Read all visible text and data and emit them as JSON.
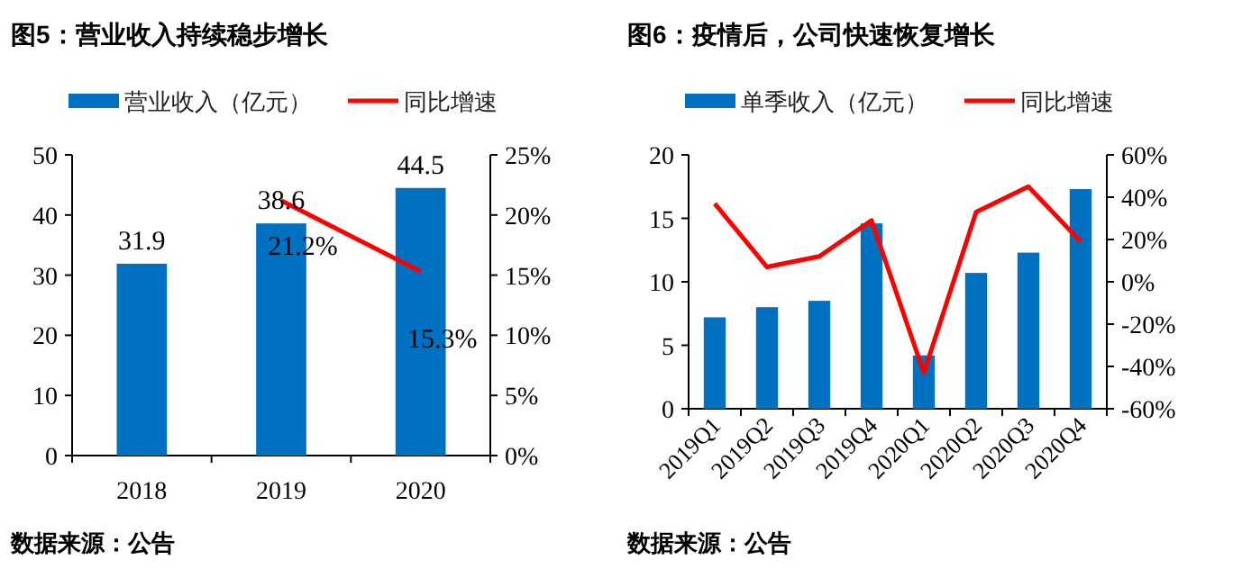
{
  "chart_data": [
    {
      "type": "bar",
      "title": "图5：营业收入持续稳步增长",
      "categories": [
        "2018",
        "2019",
        "2020"
      ],
      "series": [
        {
          "name": "营业收入（亿元）",
          "color": "#0070c0",
          "values": [
            31.9,
            38.6,
            44.5
          ],
          "value_labels": [
            "31.9",
            "38.6",
            "44.5"
          ]
        },
        {
          "name": "同比增速",
          "type": "line",
          "axis": "y2",
          "color": "#ff0000",
          "values": [
            null,
            21.2,
            15.3
          ],
          "value_labels": [
            null,
            "21.2%",
            "15.3%"
          ]
        }
      ],
      "ylim": [
        0,
        50
      ],
      "yticks": [
        0,
        10,
        20,
        30,
        40,
        50
      ],
      "y2lim": [
        0,
        25
      ],
      "y2ticks": [
        {
          "value": 0,
          "label": "0%"
        },
        {
          "value": 5,
          "label": "5%"
        },
        {
          "value": 10,
          "label": "10%"
        },
        {
          "value": 15,
          "label": "15%"
        },
        {
          "value": 20,
          "label": "20%"
        },
        {
          "value": 25,
          "label": "25%"
        }
      ],
      "legend": "top",
      "annotations": [
        "数据来源：公告"
      ]
    },
    {
      "type": "bar",
      "title": "图6：疫情后，公司快速恢复增长",
      "categories": [
        "2019Q1",
        "2019Q2",
        "2019Q3",
        "2019Q4",
        "2020Q1",
        "2020Q2",
        "2020Q3",
        "2020Q4"
      ],
      "series": [
        {
          "name": "单季收入（亿元）",
          "color": "#0070c0",
          "values": [
            7.2,
            8.0,
            8.5,
            14.6,
            4.2,
            10.7,
            12.3,
            17.3
          ]
        },
        {
          "name": "同比增速",
          "type": "line",
          "axis": "y2",
          "color": "#ff0000",
          "values": [
            37,
            7,
            12,
            29,
            -43,
            33,
            45,
            19
          ]
        }
      ],
      "ylim": [
        0,
        20
      ],
      "yticks": [
        0,
        5,
        10,
        15,
        20
      ],
      "y2lim": [
        -60,
        60
      ],
      "y2ticks": [
        {
          "value": -60,
          "label": "-60%"
        },
        {
          "value": -40,
          "label": "-40%"
        },
        {
          "value": -20,
          "label": "-20%"
        },
        {
          "value": 0,
          "label": "0%"
        },
        {
          "value": 20,
          "label": "20%"
        },
        {
          "value": 40,
          "label": "40%"
        },
        {
          "value": 60,
          "label": "60%"
        }
      ],
      "legend": "top",
      "annotations": [
        "数据来源：公告"
      ]
    }
  ]
}
